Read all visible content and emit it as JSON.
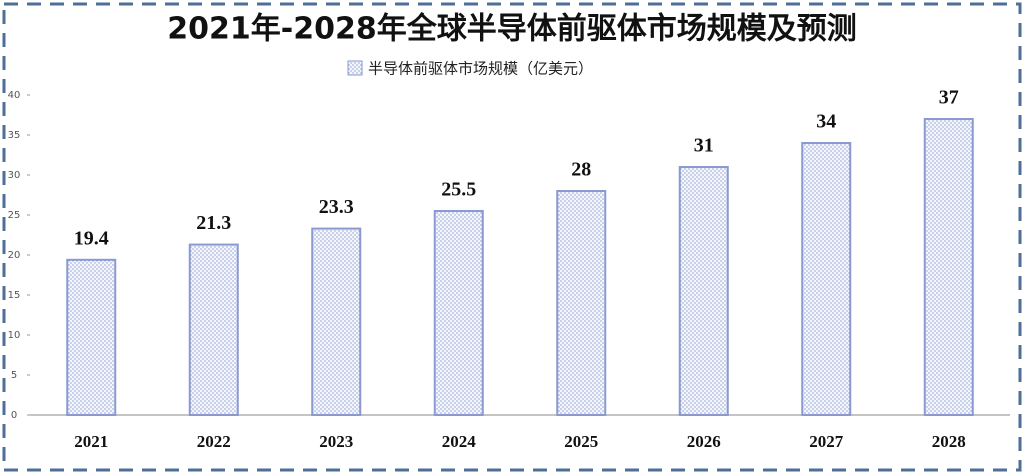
{
  "chart_data": {
    "type": "bar",
    "title": "2021年-2028年全球半导体前驱体市场规模及预测",
    "categories": [
      "2021",
      "2022",
      "2023",
      "2024",
      "2025",
      "2026",
      "2027",
      "2028"
    ],
    "series": [
      {
        "name": "半导体前驱体市场规模（亿美元）",
        "color": "#8a9ad0",
        "values": [
          19.4,
          21.3,
          23.3,
          25.5,
          28,
          31,
          34,
          37
        ]
      }
    ],
    "ylim": [
      0,
      40
    ],
    "yticks": [
      0,
      5,
      10,
      15,
      20,
      25,
      30,
      35,
      40
    ],
    "grid": false
  }
}
